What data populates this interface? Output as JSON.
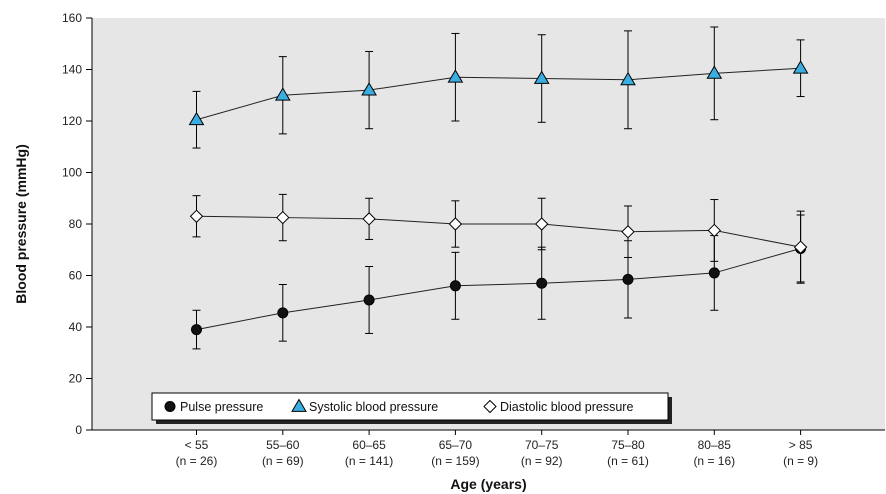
{
  "chart_data": {
    "type": "line",
    "title": "",
    "xlabel": "Age (years)",
    "ylabel": "Blood pressure (mmHg)",
    "ylim": [
      0,
      160
    ],
    "yticks": [
      0,
      20,
      40,
      60,
      80,
      100,
      120,
      140,
      160
    ],
    "grid": false,
    "legend_placement": "bottom-left",
    "categories": [
      "< 55",
      "55–60",
      "60–65",
      "65–70",
      "70–75",
      "75–80",
      "80–85",
      "> 85"
    ],
    "category_counts": [
      "n = 26",
      "n = 69",
      "n = 141",
      "n = 159",
      "n = 92",
      "n = 61",
      "n = 16",
      "n = 9"
    ],
    "colors": {
      "plot_background": "#e6e6e6",
      "systolic_fill": "#3aaee0",
      "pulse_fill": "#111111",
      "diastolic_fill": "#ffffff",
      "line": "#222222"
    },
    "series": [
      {
        "name": "Pulse pressure",
        "marker": "circle",
        "values": [
          39,
          45.5,
          50.5,
          56,
          57,
          58.5,
          61,
          70.5
        ],
        "error": [
          7.5,
          11,
          13,
          13,
          14,
          15,
          14.5,
          13
        ]
      },
      {
        "name": "Systolic blood pressure",
        "marker": "triangle",
        "values": [
          120.5,
          130,
          132,
          137,
          136.5,
          136,
          138.5,
          140.5
        ],
        "error": [
          11,
          15,
          15,
          17,
          17,
          19,
          18,
          11
        ]
      },
      {
        "name": "Diastolic blood pressure",
        "marker": "diamond",
        "values": [
          83,
          82.5,
          82,
          80,
          80,
          77,
          77.5,
          71
        ],
        "error": [
          8,
          9,
          8,
          9,
          10,
          10,
          12,
          14
        ]
      }
    ]
  }
}
